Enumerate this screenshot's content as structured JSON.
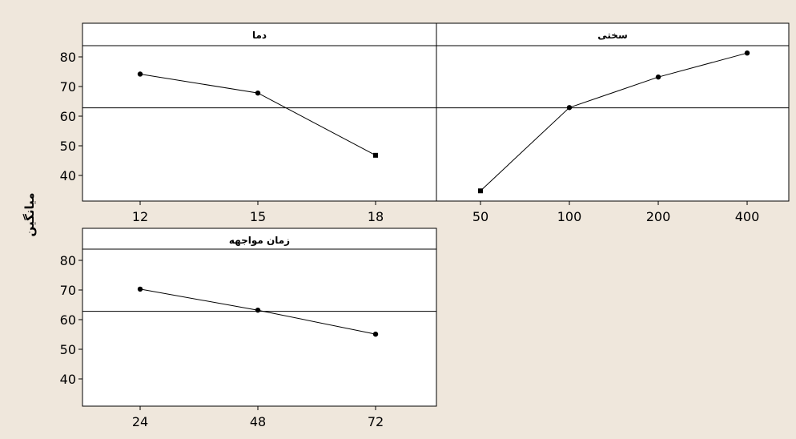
{
  "ylabel": "میانگین",
  "chart_data": [
    {
      "type": "line",
      "title": "دما",
      "categories": [
        "12",
        "15",
        "18"
      ],
      "values": [
        74.2,
        67.8,
        46.8
      ],
      "ylim": [
        31,
        88
      ],
      "yticks": [
        40,
        50,
        60,
        70,
        80
      ],
      "reference_line": 62.8,
      "ylabel": "میانگین"
    },
    {
      "type": "line",
      "title": "سختی",
      "categories": [
        "50",
        "100",
        "200",
        "400"
      ],
      "values": [
        34.8,
        62.9,
        73.2,
        81.3
      ],
      "ylim": [
        31,
        88
      ],
      "reference_line": 62.8,
      "ylabel": "میانگین"
    },
    {
      "type": "line",
      "title": "زمان مواجهه",
      "categories": [
        "24",
        "48",
        "72"
      ],
      "values": [
        70.3,
        63.2,
        55.1
      ],
      "ylim": [
        31,
        88
      ],
      "yticks": [
        40,
        50,
        60,
        70,
        80
      ],
      "reference_line": 62.8,
      "ylabel": "میانگین"
    }
  ]
}
